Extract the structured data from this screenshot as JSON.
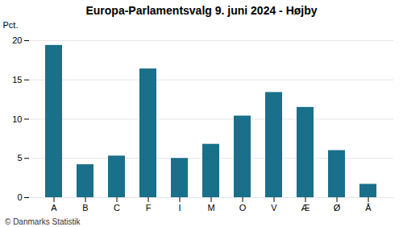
{
  "chart_data": {
    "type": "bar",
    "title": "Europa-Parlamentsvalg 9. juni 2024 - Højby",
    "categories": [
      "A",
      "B",
      "C",
      "F",
      "I",
      "M",
      "O",
      "V",
      "Æ",
      "Ø",
      "Å"
    ],
    "values": [
      19.4,
      4.2,
      5.3,
      16.4,
      5.0,
      6.8,
      10.4,
      13.4,
      11.5,
      6.0,
      1.7
    ],
    "color": "#1a6f8a",
    "ylabel": "Pct.",
    "ylim": [
      0,
      20
    ],
    "yticks": [
      0,
      5,
      10,
      15,
      20
    ],
    "grid": true,
    "caption": "© Danmarks Statistik"
  }
}
